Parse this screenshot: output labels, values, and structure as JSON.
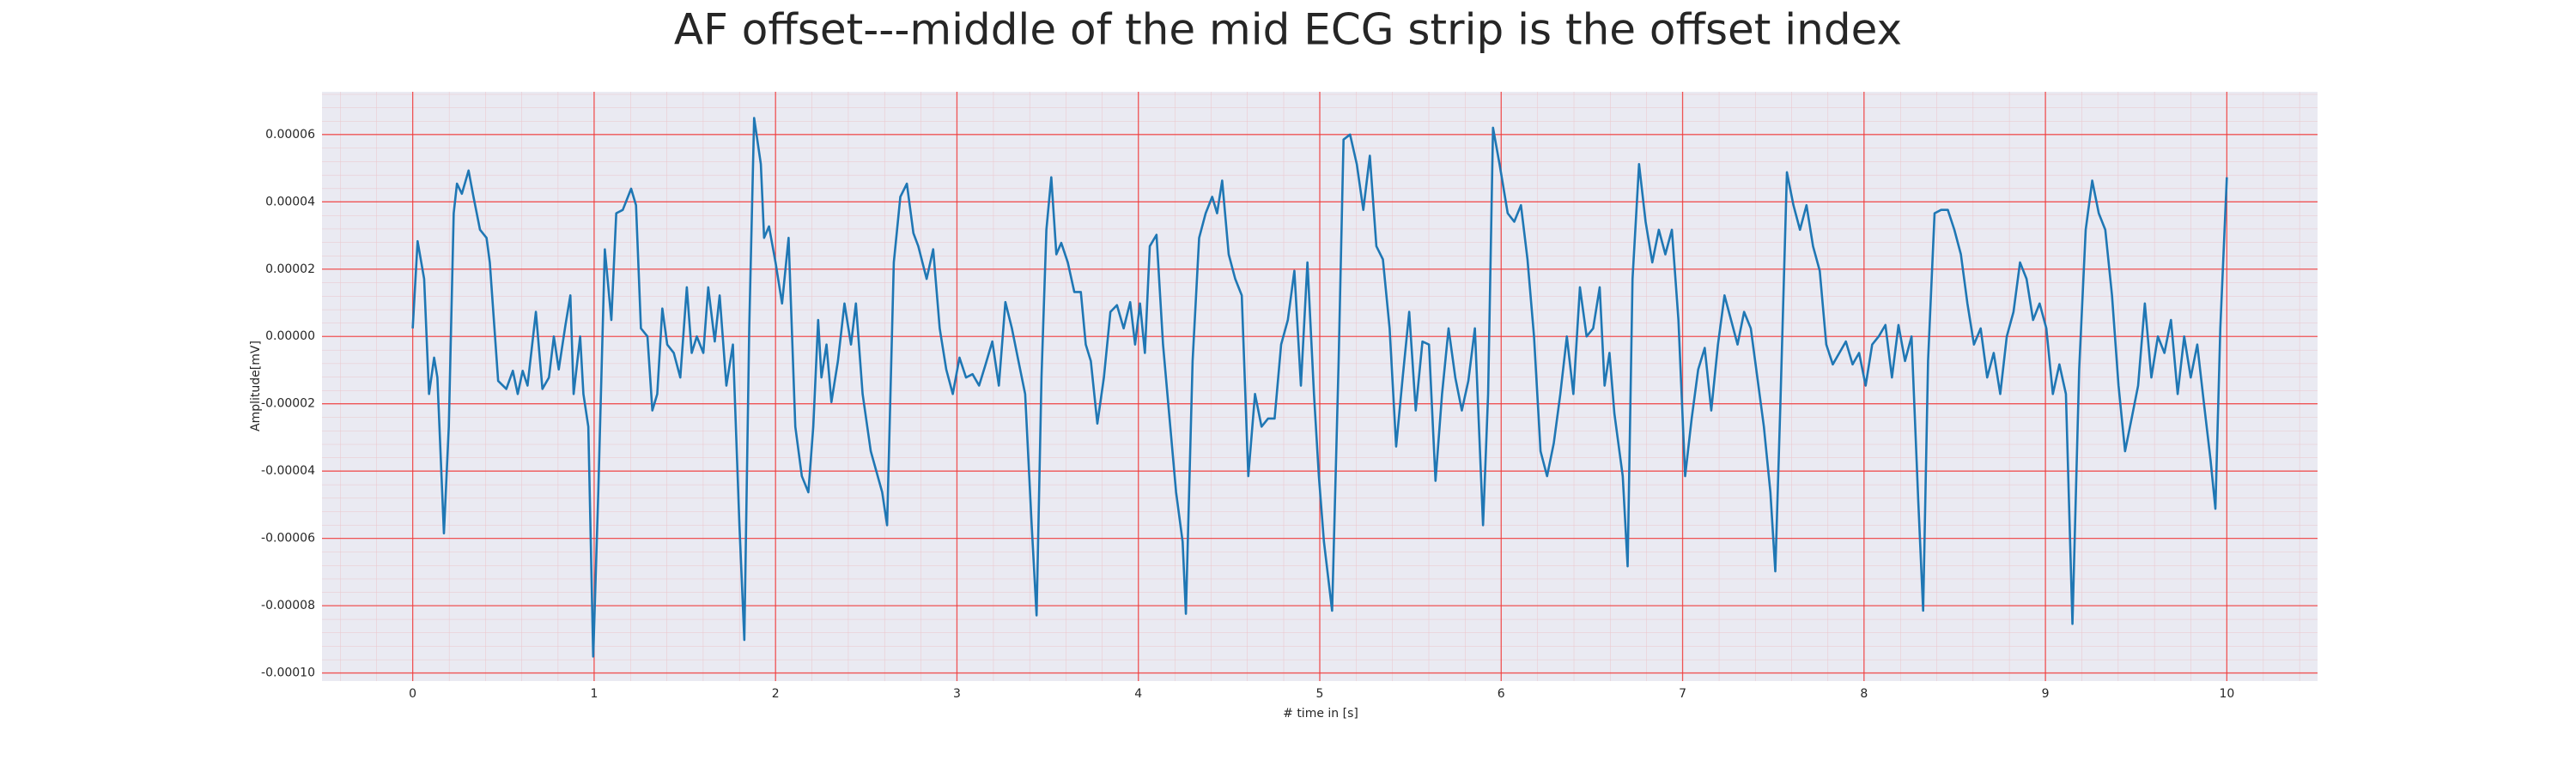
{
  "chart_data": {
    "type": "line",
    "title": "AF offset---middle of the mid ECG strip is the offset index",
    "xlabel": "# time in [s]",
    "ylabel": "Amplitude[mV]",
    "xlim": [
      -0.5,
      10.5
    ],
    "ylim": [
      -0.0001024,
      7.27e-05
    ],
    "xticks": [
      0,
      1,
      2,
      3,
      4,
      5,
      6,
      7,
      8,
      9,
      10
    ],
    "yticks": [
      {
        "value": -0.0001,
        "label": "-0.00010"
      },
      {
        "value": -8e-05,
        "label": "-0.00008"
      },
      {
        "value": -6e-05,
        "label": "-0.00006"
      },
      {
        "value": -4e-05,
        "label": "-0.00004"
      },
      {
        "value": -2e-05,
        "label": "-0.00002"
      },
      {
        "value": 0,
        "label": "0.00000"
      },
      {
        "value": 2e-05,
        "label": "0.00002"
      },
      {
        "value": 4e-05,
        "label": "0.00004"
      },
      {
        "value": 6e-05,
        "label": "0.00006"
      }
    ],
    "grid": true,
    "grid_color": "#f03c3c",
    "background": "#eaeaf2",
    "series": [
      {
        "color": "#1f77b4",
        "x": [
          0,
          0.027,
          0.063,
          0.09,
          0.118,
          0.136,
          0.172,
          0.199,
          0.226,
          0.244,
          0.271,
          0.308,
          0.335,
          0.371,
          0.407,
          0.425,
          0.471,
          0.516,
          0.552,
          0.579,
          0.606,
          0.633,
          0.679,
          0.715,
          0.751,
          0.778,
          0.805,
          0.842,
          0.869,
          0.887,
          0.923,
          0.941,
          0.968,
          0.995,
          1.023,
          1.059,
          1.095,
          1.122,
          1.158,
          1.204,
          1.231,
          1.258,
          1.294,
          1.321,
          1.348,
          1.376,
          1.403,
          1.439,
          1.475,
          1.511,
          1.538,
          1.566,
          1.602,
          1.629,
          1.665,
          1.692,
          1.729,
          1.765,
          1.801,
          1.828,
          1.855,
          1.882,
          1.919,
          1.937,
          1.964,
          2.0,
          2.036,
          2.072,
          2.109,
          2.145,
          2.181,
          2.208,
          2.235,
          2.253,
          2.281,
          2.308,
          2.344,
          2.38,
          2.416,
          2.443,
          2.48,
          2.525,
          2.588,
          2.615,
          2.652,
          2.688,
          2.724,
          2.76,
          2.787,
          2.833,
          2.869,
          2.905,
          2.941,
          2.977,
          3.014,
          3.05,
          3.086,
          3.122,
          3.158,
          3.195,
          3.231,
          3.267,
          3.303,
          3.339,
          3.376,
          3.412,
          3.439,
          3.466,
          3.493,
          3.52,
          3.548,
          3.575,
          3.611,
          3.647,
          3.683,
          3.71,
          3.738,
          3.774,
          3.81,
          3.846,
          3.882,
          3.919,
          3.955,
          3.982,
          4.009,
          4.036,
          4.063,
          4.1,
          4.136,
          4.172,
          4.208,
          4.244,
          4.262,
          4.299,
          4.335,
          4.371,
          4.407,
          4.434,
          4.462,
          4.498,
          4.534,
          4.57,
          4.606,
          4.643,
          4.679,
          4.715,
          4.751,
          4.787,
          4.824,
          4.86,
          4.896,
          4.932,
          4.968,
          4.995,
          5.023,
          5.068,
          5.104,
          5.131,
          5.167,
          5.204,
          5.24,
          5.276,
          5.312,
          5.348,
          5.385,
          5.421,
          5.457,
          5.493,
          5.529,
          5.566,
          5.602,
          5.638,
          5.674,
          5.71,
          5.747,
          5.783,
          5.819,
          5.855,
          5.9,
          5.928,
          5.955,
          5.991,
          6.036,
          6.072,
          6.109,
          6.145,
          6.181,
          6.217,
          6.253,
          6.29,
          6.326,
          6.362,
          6.398,
          6.434,
          6.471,
          6.507,
          6.543,
          6.57,
          6.597,
          6.624,
          6.67,
          6.697,
          6.724,
          6.76,
          6.796,
          6.833,
          6.869,
          6.905,
          6.941,
          6.977,
          7.014,
          7.05,
          7.086,
          7.122,
          7.158,
          7.195,
          7.231,
          7.267,
          7.303,
          7.339,
          7.376,
          7.412,
          7.448,
          7.484,
          7.511,
          7.538,
          7.575,
          7.611,
          7.647,
          7.683,
          7.719,
          7.756,
          7.792,
          7.828,
          7.864,
          7.9,
          7.937,
          7.973,
          8.009,
          8.045,
          8.081,
          8.118,
          8.154,
          8.19,
          8.226,
          8.262,
          8.299,
          8.326,
          8.353,
          8.389,
          8.425,
          8.462,
          8.498,
          8.534,
          8.57,
          8.606,
          8.643,
          8.679,
          8.715,
          8.751,
          8.787,
          8.824,
          8.86,
          8.896,
          8.932,
          8.968,
          9.005,
          9.041,
          9.077,
          9.113,
          9.149,
          9.186,
          9.222,
          9.258,
          9.294,
          9.33,
          9.367,
          9.403,
          9.439,
          9.475,
          9.511,
          9.548,
          9.584,
          9.62,
          9.656,
          9.692,
          9.729,
          9.765,
          9.801,
          9.837,
          9.873,
          9.91,
          9.937,
          9.964,
          10.0
        ],
        "values": [
          2.4e-06,
          2.83e-05,
          1.71e-05,
          -1.71e-05,
          -6.3e-06,
          -1.22e-05,
          -5.85e-05,
          -2.68e-05,
          3.66e-05,
          4.54e-05,
          4.24e-05,
          4.93e-05,
          4.15e-05,
          3.17e-05,
          2.93e-05,
          2.2e-05,
          -1.32e-05,
          -1.56e-05,
          -1.02e-05,
          -1.71e-05,
          -1.02e-05,
          -1.46e-05,
          7.3e-06,
          -1.56e-05,
          -1.22e-05,
          0,
          -9.8e-06,
          3.4e-06,
          1.22e-05,
          -1.71e-05,
          0,
          -1.71e-05,
          -2.68e-05,
          -9.51e-05,
          -4.63e-05,
          2.59e-05,
          4.9e-06,
          3.66e-05,
          3.76e-05,
          4.39e-05,
          3.9e-05,
          2.4e-06,
          0,
          -2.2e-05,
          -1.71e-05,
          8.3e-06,
          -2.4e-06,
          -4.9e-06,
          -1.22e-05,
          1.46e-05,
          -4.9e-06,
          0,
          -4.9e-06,
          1.46e-05,
          -1.5e-06,
          1.22e-05,
          -1.46e-05,
          -2.4e-06,
          -5.61e-05,
          -9.02e-05,
          2.4e-06,
          6.49e-05,
          5.12e-05,
          2.93e-05,
          3.27e-05,
          2.2e-05,
          9.8e-06,
          2.93e-05,
          -2.68e-05,
          -4.15e-05,
          -4.63e-05,
          -2.68e-05,
          4.9e-06,
          -1.22e-05,
          -2.4e-06,
          -1.95e-05,
          -7.3e-06,
          9.8e-06,
          -2.4e-06,
          9.8e-06,
          -1.71e-05,
          -3.41e-05,
          -4.63e-05,
          -5.61e-05,
          2.2e-05,
          4.15e-05,
          4.54e-05,
          3.07e-05,
          2.68e-05,
          1.71e-05,
          2.59e-05,
          2.4e-06,
          -9.8e-06,
          -1.71e-05,
          -6.3e-06,
          -1.22e-05,
          -1.12e-05,
          -1.46e-05,
          -8.3e-06,
          -1.5e-06,
          -1.46e-05,
          1.02e-05,
          2.4e-06,
          -7.3e-06,
          -1.71e-05,
          -5.61e-05,
          -8.29e-05,
          -1.22e-05,
          3.17e-05,
          4.73e-05,
          2.44e-05,
          2.78e-05,
          2.2e-05,
          1.32e-05,
          1.32e-05,
          -2.4e-06,
          -7.3e-06,
          -2.59e-05,
          -1.22e-05,
          7.3e-06,
          9.3e-06,
          2.4e-06,
          1.02e-05,
          -2.4e-06,
          9.8e-06,
          -4.9e-06,
          2.68e-05,
          3.02e-05,
          -2.4e-06,
          -2.44e-05,
          -4.63e-05,
          -6.1e-05,
          -8.24e-05,
          -7.3e-06,
          2.93e-05,
          3.66e-05,
          4.15e-05,
          3.66e-05,
          4.63e-05,
          2.44e-05,
          1.71e-05,
          1.22e-05,
          -4.15e-05,
          -1.71e-05,
          -2.68e-05,
          -2.44e-05,
          -2.44e-05,
          -2.4e-06,
          4.9e-06,
          1.95e-05,
          -1.46e-05,
          2.2e-05,
          -1.71e-05,
          -4.15e-05,
          -6.1e-05,
          -8.15e-05,
          -7.3e-06,
          5.85e-05,
          6e-05,
          5.12e-05,
          3.76e-05,
          5.37e-05,
          2.68e-05,
          2.29e-05,
          2.4e-06,
          -3.27e-05,
          -1.22e-05,
          7.3e-06,
          -2.2e-05,
          -1.5e-06,
          -2.4e-06,
          -4.29e-05,
          -1.71e-05,
          2.4e-06,
          -1.22e-05,
          -2.2e-05,
          -1.32e-05,
          2.4e-06,
          -5.61e-05,
          -1.71e-05,
          6.2e-05,
          5.12e-05,
          3.66e-05,
          3.41e-05,
          3.9e-05,
          2.29e-05,
          0,
          -3.41e-05,
          -4.15e-05,
          -3.17e-05,
          -1.71e-05,
          0,
          -1.71e-05,
          1.46e-05,
          0,
          2.4e-06,
          1.46e-05,
          -1.46e-05,
          -4.9e-06,
          -2.29e-05,
          -4.15e-05,
          -6.83e-05,
          1.71e-05,
          5.12e-05,
          3.41e-05,
          2.2e-05,
          3.17e-05,
          2.44e-05,
          3.17e-05,
          4.9e-06,
          -4.15e-05,
          -2.44e-05,
          -9.8e-06,
          -3.4e-06,
          -2.2e-05,
          -2.4e-06,
          1.22e-05,
          4.9e-06,
          -2.4e-06,
          7.3e-06,
          2.4e-06,
          -1.22e-05,
          -2.68e-05,
          -4.63e-05,
          -6.98e-05,
          -2.2e-05,
          4.88e-05,
          3.9e-05,
          3.17e-05,
          3.9e-05,
          2.68e-05,
          1.95e-05,
          -2.4e-06,
          -8.3e-06,
          -4.9e-06,
          -1.5e-06,
          -8.3e-06,
          -4.9e-06,
          -1.46e-05,
          -2.4e-06,
          0,
          3.4e-06,
          -1.22e-05,
          3.4e-06,
          -7.3e-06,
          0,
          -4.88e-05,
          -8.15e-05,
          -7.3e-06,
          3.66e-05,
          3.76e-05,
          3.76e-05,
          3.17e-05,
          2.44e-05,
          9.8e-06,
          -2.4e-06,
          2.4e-06,
          -1.22e-05,
          -4.9e-06,
          -1.71e-05,
          0,
          7.3e-06,
          2.2e-05,
          1.71e-05,
          4.9e-06,
          9.8e-06,
          2.4e-06,
          -1.71e-05,
          -8.3e-06,
          -1.71e-05,
          -8.54e-05,
          -9.8e-06,
          3.17e-05,
          4.63e-05,
          3.66e-05,
          3.17e-05,
          1.22e-05,
          -1.46e-05,
          -3.41e-05,
          -2.44e-05,
          -1.46e-05,
          9.8e-06,
          -1.22e-05,
          0,
          -4.9e-06,
          4.9e-06,
          -1.71e-05,
          0,
          -1.22e-05,
          -2.4e-06,
          -1.95e-05,
          -3.66e-05,
          -5.12e-05,
          2.4e-06,
          4.73e-05
        ]
      }
    ]
  }
}
